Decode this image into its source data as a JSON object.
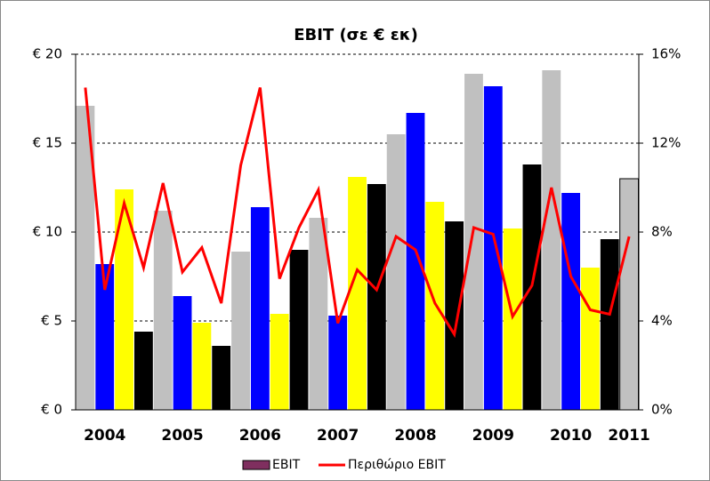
{
  "chart_data": {
    "type": "bar_line",
    "title": "EBIT (σε € εκ)",
    "categories": [
      null,
      "2004",
      null,
      null,
      null,
      "2005",
      null,
      null,
      null,
      "2006",
      null,
      null,
      null,
      "2007",
      null,
      null,
      null,
      "2008",
      null,
      null,
      null,
      "2009",
      null,
      null,
      null,
      "2010",
      null,
      null,
      "2011"
    ],
    "series": [
      {
        "name": "EBIT",
        "type": "bar",
        "color": "#7f2f5f",
        "colors": [
          "#c0c0c0",
          "#0000ff",
          "#ffff00",
          "#000000",
          "#c0c0c0",
          "#0000ff",
          "#ffff00",
          "#000000",
          "#c0c0c0",
          "#0000ff",
          "#ffff00",
          "#000000",
          "#c0c0c0",
          "#0000ff",
          "#ffff00",
          "#000000",
          "#c0c0c0",
          "#0000ff",
          "#ffff00",
          "#000000",
          "#c0c0c0",
          "#0000ff",
          "#ffff00",
          "#000000",
          "#c0c0c0",
          "#0000ff",
          "#ffff00",
          "#000000",
          "#c0c0c0"
        ],
        "values": [
          17.1,
          8.2,
          12.4,
          4.4,
          11.2,
          6.4,
          4.9,
          3.6,
          8.9,
          11.4,
          5.4,
          9.0,
          10.8,
          5.3,
          13.1,
          12.7,
          15.5,
          16.7,
          11.7,
          10.6,
          18.9,
          18.2,
          10.2,
          13.8,
          19.1,
          12.2,
          8.0,
          9.6,
          13.0
        ]
      },
      {
        "name": "Περιθώριο EBIT",
        "type": "line",
        "axis": "y2",
        "color": "#ff0000",
        "values": [
          14.5,
          5.4,
          9.3,
          6.4,
          10.2,
          6.2,
          7.3,
          4.8,
          11.0,
          14.5,
          5.9,
          8.2,
          9.9,
          3.9,
          6.3,
          5.4,
          7.8,
          7.2,
          4.8,
          3.4,
          8.2,
          7.9,
          4.2,
          5.6,
          10.0,
          6.0,
          4.5,
          4.3,
          7.8
        ]
      }
    ],
    "ylim": [
      0,
      20
    ],
    "yticks": [
      {
        "value": 0,
        "label": "€ 0"
      },
      {
        "value": 5,
        "label": "€ 5"
      },
      {
        "value": 10,
        "label": "€ 10"
      },
      {
        "value": 15,
        "label": "€ 15"
      },
      {
        "value": 20,
        "label": "€ 20"
      }
    ],
    "y2lim": [
      0,
      16
    ],
    "y2ticks": [
      {
        "value": 0,
        "label": "0%"
      },
      {
        "value": 4,
        "label": "4%"
      },
      {
        "value": 8,
        "label": "8%"
      },
      {
        "value": 12,
        "label": "12%"
      },
      {
        "value": 16,
        "label": "16%"
      }
    ],
    "grid": true,
    "legend": "bottom"
  }
}
